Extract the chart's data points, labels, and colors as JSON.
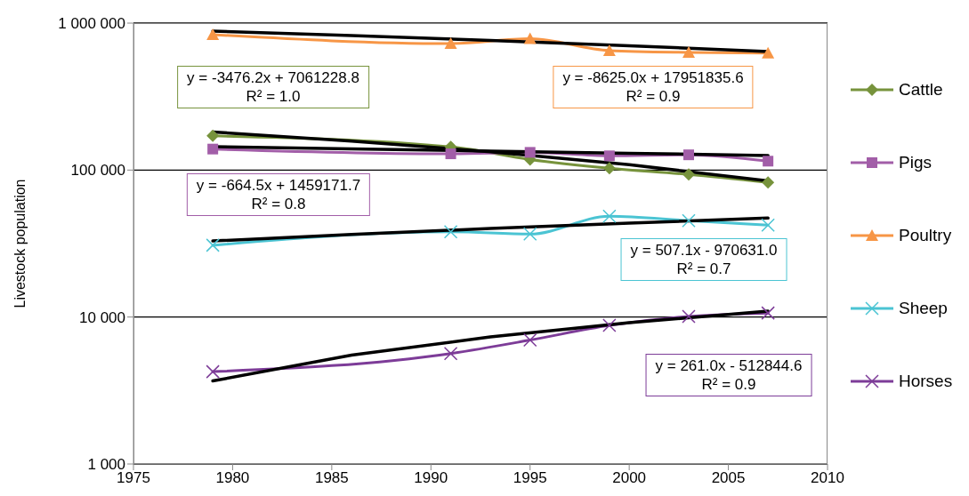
{
  "chart_data": {
    "type": "line",
    "ylabel": "Livestock population",
    "x": [
      1979,
      1991,
      1995,
      1999,
      2003,
      2007
    ],
    "xlim": [
      1975,
      2010
    ],
    "xticks": [
      1975,
      1980,
      1985,
      1990,
      1995,
      2000,
      2005,
      2010
    ],
    "ylim": [
      1000,
      1000000
    ],
    "yticks": [
      {
        "value": 1000,
        "label": "1 000"
      },
      {
        "value": 10000,
        "label": "10 000"
      },
      {
        "value": 100000,
        "label": "100 000"
      },
      {
        "value": 1000000,
        "label": "1 000 000"
      }
    ],
    "log": "y",
    "grid": "y",
    "legend": "right",
    "line_style": "solid",
    "series": [
      {
        "name": "Cattle",
        "color": "#77933c",
        "marker": "diamond",
        "values": [
          171000,
          144000,
          118000,
          103000,
          93300,
          82300
        ]
      },
      {
        "name": "Pigs",
        "color": "#a25ea8",
        "marker": "square",
        "values": [
          139000,
          129000,
          132000,
          125000,
          127000,
          115000
        ]
      },
      {
        "name": "Poultry",
        "color": "#f79646",
        "marker": "triangle",
        "values": [
          834000,
          726000,
          783000,
          650000,
          632000,
          625000
        ]
      },
      {
        "name": "Sheep",
        "color": "#4bc4d3",
        "marker": "cross",
        "values": [
          30800,
          38000,
          36700,
          48500,
          45300,
          42200
        ]
      },
      {
        "name": "Horses",
        "color": "#7d3c98",
        "marker": "cross",
        "values": [
          4250,
          5650,
          6970,
          8770,
          10100,
          10650
        ]
      },
      {
        "type": "line",
        "color": "#000000",
        "marker": "none",
        "x": [
          1979,
          1986,
          1993,
          2000,
          2007
        ],
        "values": [
          181829,
          157496,
          133162,
          108829,
          84495
        ]
      },
      {
        "type": "line",
        "color": "#000000",
        "marker": "none",
        "x": [
          1979,
          1986,
          1993,
          2000,
          2007
        ],
        "values": [
          144126,
          139475,
          134823,
          130172,
          125520
        ]
      },
      {
        "type": "line",
        "color": "#000000",
        "marker": "none",
        "x": [
          1979,
          1986,
          1993,
          2000,
          2007
        ],
        "values": [
          882961,
          822586,
          761711,
          701836,
          641461
        ]
      },
      {
        "type": "line",
        "color": "#000000",
        "marker": "none",
        "x": [
          1979,
          1986,
          1993,
          2000,
          2007
        ],
        "values": [
          32920,
          36470,
          40019,
          43569,
          47119
        ]
      },
      {
        "type": "line",
        "color": "#000000",
        "marker": "none",
        "x": [
          1979,
          1986,
          1993,
          2000,
          2007
        ],
        "values": [
          3674,
          5501,
          7328,
          9155,
          10982
        ]
      }
    ],
    "annotations": [
      "y = -3476.2x + 7061228.8\nR² = 1.0",
      "y = -664.5x + 1459171.7\nR² = 0.8",
      "y = -8625.0x + 17951835.6\nR² = 0.9",
      "y = 507.1x - 970631.0\nR² = 0.7",
      "y = 261.0x - 512844.6\nR² = 0.9"
    ]
  }
}
